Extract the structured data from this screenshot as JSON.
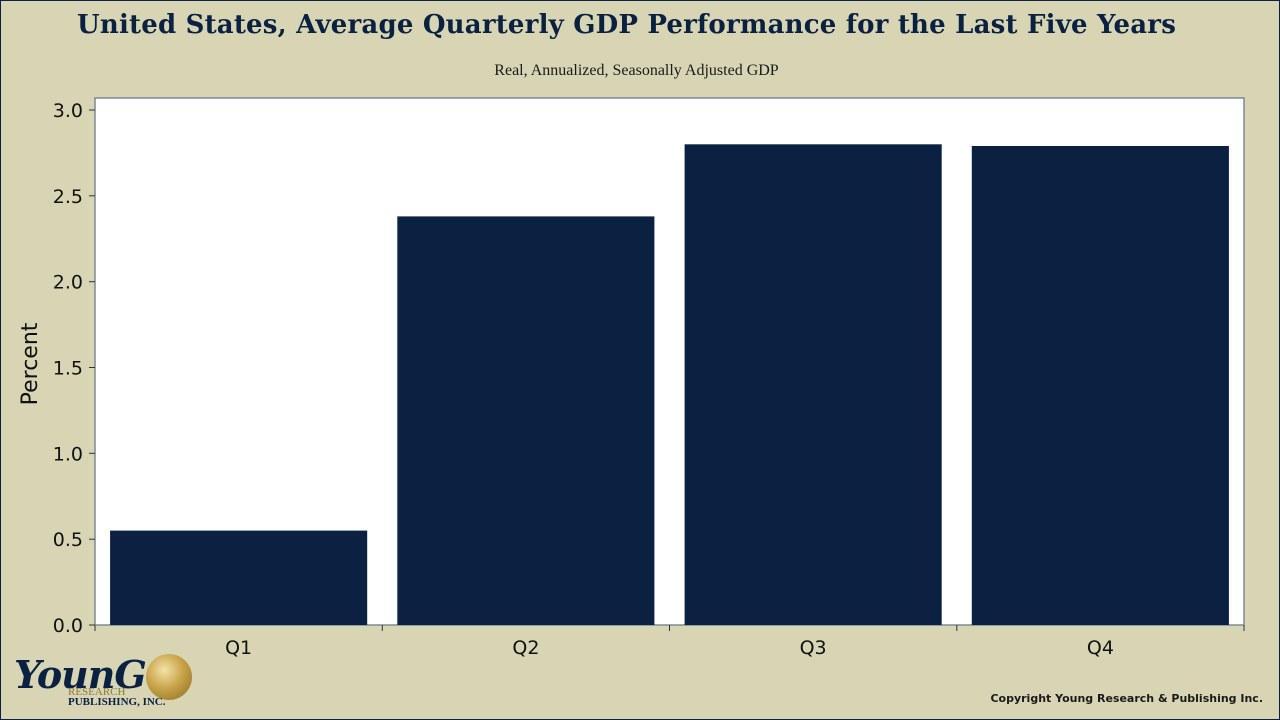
{
  "chart_data": {
    "type": "bar",
    "title": "United States, Average Quarterly GDP Performance for the Last Five Years",
    "subtitle": "Real, Annualized, Seasonally Adjusted GDP",
    "categories": [
      "Q1",
      "Q2",
      "Q3",
      "Q4"
    ],
    "values": [
      0.55,
      2.38,
      2.8,
      2.79
    ],
    "xlabel": "",
    "ylabel": "Percent",
    "ylim": [
      0,
      3.0
    ],
    "yticks": [
      "0.0",
      "0.5",
      "1.0",
      "1.5",
      "2.0",
      "2.5",
      "3.0"
    ],
    "grid": false,
    "legend": "none"
  },
  "colors": {
    "background": "#d8d5b4",
    "plot_background": "#ffffff",
    "bar": "#0b2142",
    "title": "#0b2142"
  },
  "logo": {
    "word": "YounG",
    "small_text": "RESEARCH",
    "publishing_text": "PUBLISHING, INC."
  },
  "copyright": "Copyright Young Research & Publishing Inc."
}
